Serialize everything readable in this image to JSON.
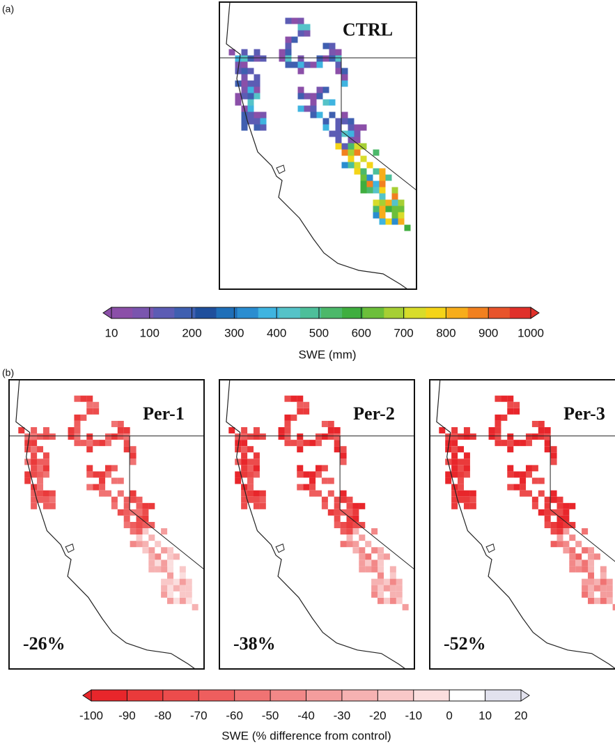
{
  "panel_a": {
    "label": "(a)",
    "title": "CTRL"
  },
  "colorbar_a": {
    "ticks": [
      10,
      100,
      200,
      300,
      400,
      500,
      600,
      700,
      800,
      900,
      1000
    ],
    "colors": [
      "#8b4fa8",
      "#7a55ae",
      "#5c5cb4",
      "#3f5fb0",
      "#1f4f9c",
      "#1f6fb8",
      "#2a8dd0",
      "#3fb4e0",
      "#55c3c8",
      "#4dbf9a",
      "#4cb86a",
      "#3fae3f",
      "#6cbf3a",
      "#a6cf34",
      "#d8dc2a",
      "#f4d418",
      "#f7ad1b",
      "#f1801f",
      "#e8542b",
      "#e0302a"
    ],
    "label": "SWE (mm)"
  },
  "panel_b": {
    "label": "(b)",
    "maps": [
      {
        "title": "Per-1",
        "change": "-26%"
      },
      {
        "title": "Per-2",
        "change": "-38%"
      },
      {
        "title": "Per-3",
        "change": "-52%"
      }
    ]
  },
  "colorbar_b": {
    "ticks": [
      -100,
      -90,
      -80,
      -70,
      -60,
      -50,
      -40,
      -30,
      -20,
      -10,
      0,
      10,
      20
    ],
    "colors": [
      "#e8262b",
      "#ea3a3b",
      "#ec4c4c",
      "#ee5e5e",
      "#f07373",
      "#f28888",
      "#f49d9d",
      "#f6b2b2",
      "#f9c8c8",
      "#fbdede",
      "#ffffff",
      "#e2e2ee"
    ],
    "label": "SWE (% difference from control)"
  }
}
